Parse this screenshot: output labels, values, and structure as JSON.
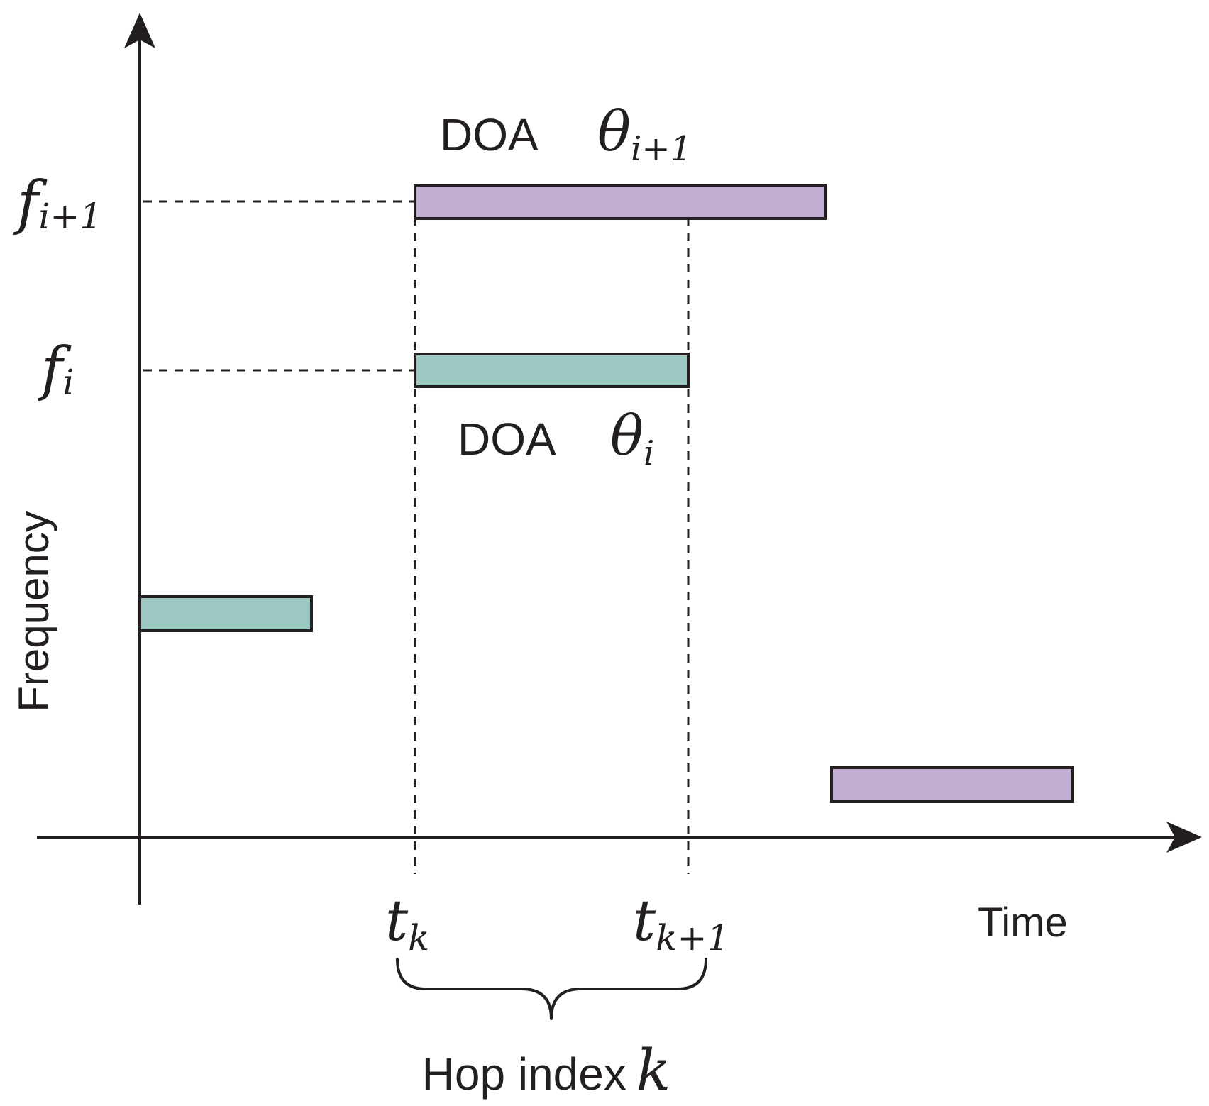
{
  "colors": {
    "purple_bar": "#c5aed3",
    "teal_bar": "#9dc9c2",
    "ink": "#231f20"
  },
  "axes": {
    "y_label": "Frequency",
    "x_label": "Time"
  },
  "frequencies": {
    "upper": {
      "symbol": "f",
      "subscript": "i+1"
    },
    "lower": {
      "symbol": "f",
      "subscript": "i"
    }
  },
  "doa": {
    "upper": {
      "label": "DOA",
      "symbol": "θ",
      "subscript": "i+1"
    },
    "lower": {
      "label": "DOA",
      "symbol": "θ",
      "subscript": "i"
    }
  },
  "time_marks": {
    "start": {
      "symbol": "t",
      "subscript": "k"
    },
    "end": {
      "symbol": "t",
      "subscript": "k+1"
    }
  },
  "hop": {
    "label": "Hop index",
    "variable": "k"
  }
}
